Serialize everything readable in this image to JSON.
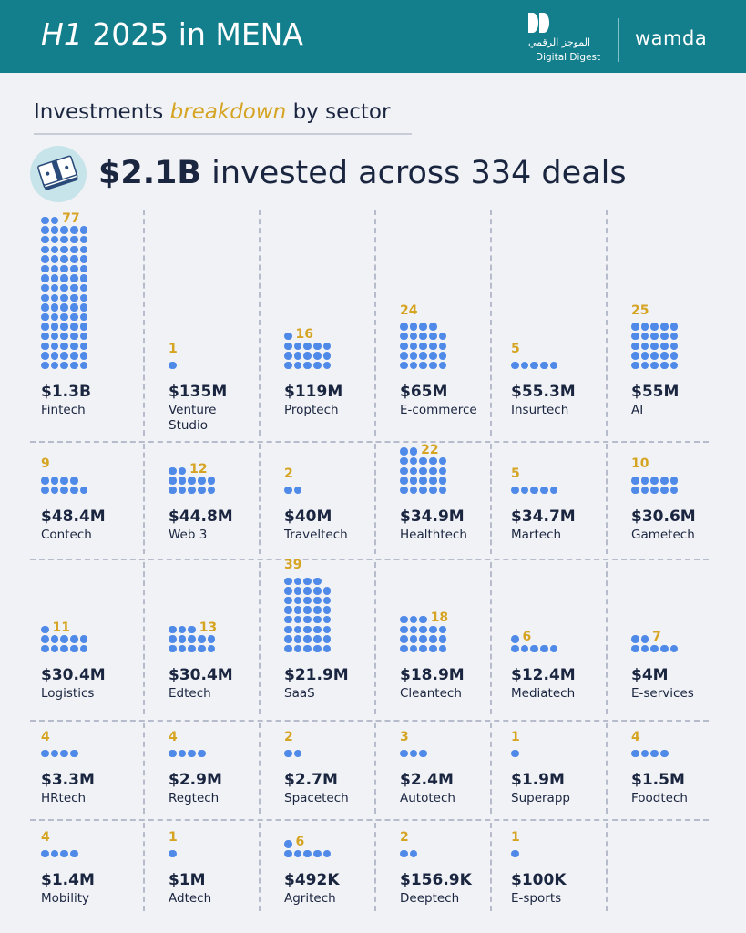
{
  "header": {
    "title_italic": "H1",
    "title_rest": " 2025 in MENA",
    "brand_ar": "الموجز الرقمي",
    "brand_en": "Digital Digest",
    "brand_wamda": "wamda",
    "bg_color": "#137e8c"
  },
  "subtitle": {
    "part1": "Investments ",
    "highlight": "breakdown",
    "part2": " by sector"
  },
  "summary": {
    "amount": "$2.1B",
    "rest": " invested across 334 deals"
  },
  "colors": {
    "dot": "#4f8ae8",
    "count": "#d6a423",
    "text": "#1a2540",
    "background": "#f1f2f5"
  },
  "chart_data": {
    "type": "dot-matrix",
    "rows": [
      [
        {
          "sector": "Fintech",
          "amount": "$1.3B",
          "deals": 77
        },
        {
          "sector": "Venture Studio",
          "amount": "$135M",
          "deals": 1
        },
        {
          "sector": "Proptech",
          "amount": "$119M",
          "deals": 16
        },
        {
          "sector": "E-commerce",
          "amount": "$65M",
          "deals": 24
        },
        {
          "sector": "Insurtech",
          "amount": "$55.3M",
          "deals": 5
        },
        {
          "sector": "AI",
          "amount": "$55M",
          "deals": 25
        }
      ],
      [
        {
          "sector": "Contech",
          "amount": "$48.4M",
          "deals": 9
        },
        {
          "sector": "Web 3",
          "amount": "$44.8M",
          "deals": 12
        },
        {
          "sector": "Traveltech",
          "amount": "$40M",
          "deals": 2
        },
        {
          "sector": "Healthtech",
          "amount": "$34.9M",
          "deals": 22
        },
        {
          "sector": "Martech",
          "amount": "$34.7M",
          "deals": 5
        },
        {
          "sector": "Gametech",
          "amount": "$30.6M",
          "deals": 10
        }
      ],
      [
        {
          "sector": "Logistics",
          "amount": "$30.4M",
          "deals": 11
        },
        {
          "sector": "Edtech",
          "amount": "$30.4M",
          "deals": 13
        },
        {
          "sector": "SaaS",
          "amount": "$21.9M",
          "deals": 39
        },
        {
          "sector": "Cleantech",
          "amount": "$18.9M",
          "deals": 18
        },
        {
          "sector": "Mediatech",
          "amount": "$12.4M",
          "deals": 6
        },
        {
          "sector": "E-services",
          "amount": "$4M",
          "deals": 7
        }
      ],
      [
        {
          "sector": "HRtech",
          "amount": "$3.3M",
          "deals": 4
        },
        {
          "sector": "Regtech",
          "amount": "$2.9M",
          "deals": 4
        },
        {
          "sector": "Spacetech",
          "amount": "$2.7M",
          "deals": 2
        },
        {
          "sector": "Autotech",
          "amount": "$2.4M",
          "deals": 3
        },
        {
          "sector": "Superapp",
          "amount": "$1.9M",
          "deals": 1
        },
        {
          "sector": "Foodtech",
          "amount": "$1.5M",
          "deals": 4
        }
      ],
      [
        {
          "sector": "Mobility",
          "amount": "$1.4M",
          "deals": 4
        },
        {
          "sector": "Adtech",
          "amount": "$1M",
          "deals": 1
        },
        {
          "sector": "Agritech",
          "amount": "$492K",
          "deals": 6
        },
        {
          "sector": "Deeptech",
          "amount": "$156.9K",
          "deals": 2
        },
        {
          "sector": "E-sports",
          "amount": "$100K",
          "deals": 1
        }
      ]
    ]
  }
}
